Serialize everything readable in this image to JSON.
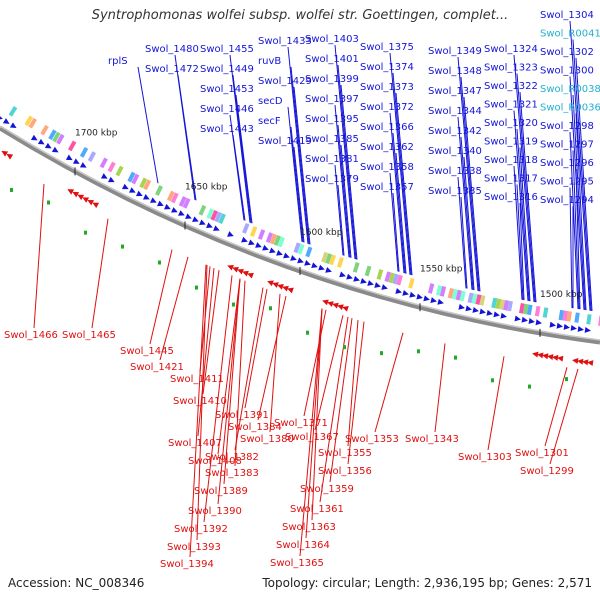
{
  "title": "Syntrophomonas wolfei subsp. wolfei str. Goettingen, complet...",
  "footer": {
    "accession": "Accession: NC_008346",
    "summary": "Topology: circular; Length: 2,936,195 bp; Genes: 2,571"
  },
  "colors": {
    "forward_gene": "#1414d8",
    "reverse_gene": "#e01010",
    "rna_label": "#22b0d0",
    "backbone": "#8a8a8a",
    "ticks": "#222222"
  },
  "scale_ticks": [
    {
      "label": "1700 kbp"
    },
    {
      "label": "1650 kbp"
    },
    {
      "label": "1600 kbp"
    },
    {
      "label": "1550 kbp"
    },
    {
      "label": "1500 kbp"
    }
  ],
  "forward_labels": [
    {
      "text": "rplS"
    },
    {
      "text": "Swol_1480"
    },
    {
      "text": "Swol_1472"
    },
    {
      "text": "Swol_1455"
    },
    {
      "text": "Swol_1449"
    },
    {
      "text": "Swol_1453"
    },
    {
      "text": "Swol_1446"
    },
    {
      "text": "Swol_1443"
    },
    {
      "text": "Swol_1433"
    },
    {
      "text": "ruvB"
    },
    {
      "text": "Swol_1429"
    },
    {
      "text": "secD"
    },
    {
      "text": "secF"
    },
    {
      "text": "Swol_1419"
    },
    {
      "text": "Swol_1403"
    },
    {
      "text": "Swol_1401"
    },
    {
      "text": "Swol_1399"
    },
    {
      "text": "Swol_1397"
    },
    {
      "text": "Swol_1395"
    },
    {
      "text": "Swol_1385"
    },
    {
      "text": "Swol_1381"
    },
    {
      "text": "Swol_1379"
    },
    {
      "text": "Swol_1375"
    },
    {
      "text": "Swol_1374"
    },
    {
      "text": "Swol_1373"
    },
    {
      "text": "Swol_1372"
    },
    {
      "text": "Swol_1366"
    },
    {
      "text": "Swol_1362"
    },
    {
      "text": "Swol_1358"
    },
    {
      "text": "Swol_1357"
    },
    {
      "text": "Swol_1349"
    },
    {
      "text": "Swol_1348"
    },
    {
      "text": "Swol_1347"
    },
    {
      "text": "Swol_1344"
    },
    {
      "text": "Swol_1342"
    },
    {
      "text": "Swol_1340"
    },
    {
      "text": "Swol_1338"
    },
    {
      "text": "Swol_1335"
    },
    {
      "text": "Swol_1324"
    },
    {
      "text": "Swol_1323"
    },
    {
      "text": "Swol_1322"
    },
    {
      "text": "Swol_1321"
    },
    {
      "text": "Swol_1320"
    },
    {
      "text": "Swol_1319"
    },
    {
      "text": "Swol_1318"
    },
    {
      "text": "Swol_1317"
    },
    {
      "text": "Swol_1316"
    },
    {
      "text": "Swol_1304"
    },
    {
      "text": "Swol_R0041"
    },
    {
      "text": "Swol_1302"
    },
    {
      "text": "Swol_1300"
    },
    {
      "text": "Swol_R0038"
    },
    {
      "text": "Swol_R0036"
    },
    {
      "text": "Swol_1298"
    },
    {
      "text": "Swol_1297"
    },
    {
      "text": "Swol_1296"
    },
    {
      "text": "Swol_1295"
    },
    {
      "text": "Swol_1294"
    }
  ],
  "reverse_labels": [
    {
      "text": "Swol_1466"
    },
    {
      "text": "Swol_1465"
    },
    {
      "text": "Swol_1445"
    },
    {
      "text": "Swol_1421"
    },
    {
      "text": "Swol_1411"
    },
    {
      "text": "Swol_1410"
    },
    {
      "text": "Swol_1391"
    },
    {
      "text": "Swol_1384"
    },
    {
      "text": "Swol_1380"
    },
    {
      "text": "Swol_1407"
    },
    {
      "text": "Swol_1408"
    },
    {
      "text": "Swol_1382"
    },
    {
      "text": "Swol_1383"
    },
    {
      "text": "Swol_1389"
    },
    {
      "text": "Swol_1390"
    },
    {
      "text": "Swol_1392"
    },
    {
      "text": "Swol_1393"
    },
    {
      "text": "Swol_1394"
    },
    {
      "text": "Swol_1371"
    },
    {
      "text": "Swol_1367"
    },
    {
      "text": "Swol_1355"
    },
    {
      "text": "Swol_1356"
    },
    {
      "text": "Swol_1359"
    },
    {
      "text": "Swol_1361"
    },
    {
      "text": "Swol_1363"
    },
    {
      "text": "Swol_1364"
    },
    {
      "text": "Swol_1365"
    },
    {
      "text": "Swol_1353"
    },
    {
      "text": "Swol_1343"
    },
    {
      "text": "Swol_1303"
    },
    {
      "text": "Swol_1301"
    },
    {
      "text": "Swol_1299"
    }
  ]
}
